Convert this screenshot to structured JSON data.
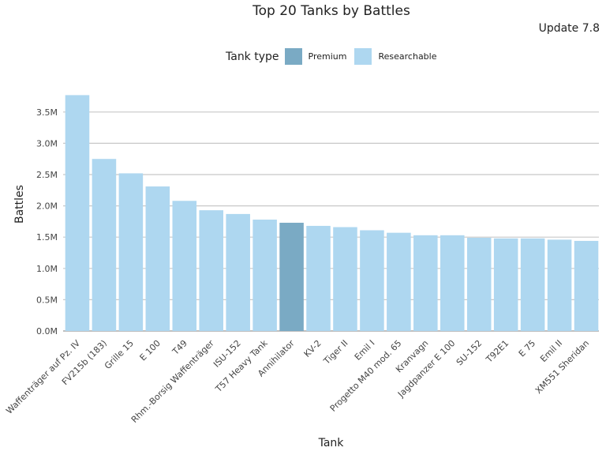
{
  "chart_data": {
    "type": "bar",
    "title": "Top 20 Tanks by Battles",
    "subtitle": "Update 7.8",
    "xlabel": "Tank",
    "ylabel": "Battles",
    "ylim": [
      0,
      3.8
    ],
    "yticks": [
      "0.0M",
      "0.5M",
      "1.0M",
      "1.5M",
      "2.0M",
      "2.5M",
      "3.0M",
      "3.5M"
    ],
    "grid": true,
    "legend": {
      "title": "Tank type",
      "placement": "top-center",
      "entries": [
        {
          "label": "Premium",
          "color": "#7aaac4"
        },
        {
          "label": "Researchable",
          "color": "#aed7f0"
        }
      ]
    },
    "categories": [
      "Waffenträger auf Pz. IV",
      "FV215b (183)",
      "Grille 15",
      "E 100",
      "T49",
      "Rhm.-Borsig Waffenträger",
      "ISU-152",
      "T57 Heavy Tank",
      "Annihilator",
      "KV-2",
      "Tiger II",
      "Emil I",
      "Progetto M40 mod. 65",
      "Kranvagn",
      "Jagdpanzer E 100",
      "SU-152",
      "T92E1",
      "E 75",
      "Emil II",
      "XM551 Sheridan"
    ],
    "values": [
      3.77,
      2.75,
      2.52,
      2.31,
      2.08,
      1.93,
      1.87,
      1.78,
      1.73,
      1.68,
      1.66,
      1.61,
      1.57,
      1.53,
      1.53,
      1.49,
      1.48,
      1.48,
      1.46,
      1.44
    ],
    "types": [
      "Researchable",
      "Researchable",
      "Researchable",
      "Researchable",
      "Researchable",
      "Researchable",
      "Researchable",
      "Researchable",
      "Premium",
      "Researchable",
      "Researchable",
      "Researchable",
      "Researchable",
      "Researchable",
      "Researchable",
      "Researchable",
      "Researchable",
      "Researchable",
      "Researchable",
      "Researchable"
    ]
  }
}
